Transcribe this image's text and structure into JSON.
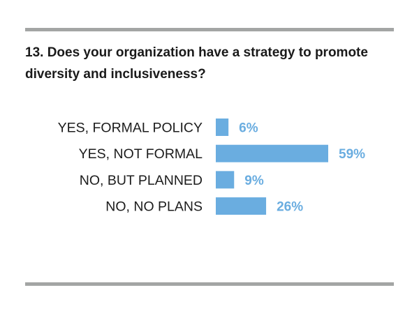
{
  "question": {
    "title": "13. Does your organization have a strategy to promote diversity and inclusiveness?"
  },
  "colors": {
    "bar": "#6aade0",
    "value_label": "#6aade0",
    "rule": "#a3a5a4",
    "text": "#1c1c1c"
  },
  "chart_data": {
    "type": "bar",
    "orientation": "horizontal",
    "title": "13. Does your organization have a strategy to promote diversity and inclusiveness?",
    "categories": [
      "YES, FORMAL POLICY",
      "YES, NOT FORMAL",
      "NO, BUT PLANNED",
      "NO, NO PLANS"
    ],
    "values": [
      6,
      59,
      9,
      26
    ],
    "value_labels": [
      "6%",
      "59%",
      "9%",
      "26%"
    ],
    "unit": "%",
    "xlabel": "",
    "ylabel": "",
    "xlim": [
      0,
      59
    ],
    "grid": false,
    "legend": "none"
  }
}
